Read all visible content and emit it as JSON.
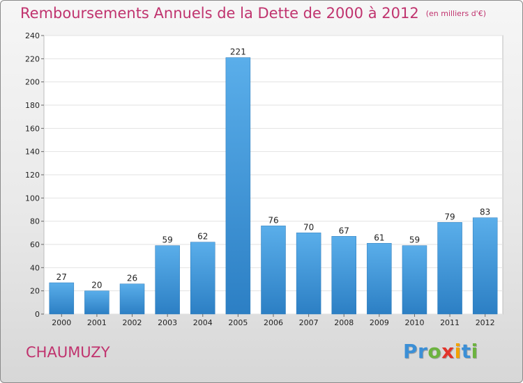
{
  "header": {
    "title": "Remboursements Annuels de la Dette de 2000 à 2012",
    "unit": "(en milliers d'€)"
  },
  "commune": "CHAUMUZY",
  "logo": {
    "letters": [
      {
        "char": "P",
        "color": "#3b8fd6"
      },
      {
        "char": "r",
        "color": "#3b8fd6"
      },
      {
        "char": "o",
        "color": "#6cb33f"
      },
      {
        "char": "x",
        "color": "#e2342b"
      },
      {
        "char": "i",
        "color": "#f2a200"
      },
      {
        "char": "t",
        "color": "#3b8fd6"
      },
      {
        "char": "i",
        "color": "#6cb33f"
      }
    ]
  },
  "chart_data": {
    "type": "bar",
    "categories": [
      "2000",
      "2001",
      "2002",
      "2003",
      "2004",
      "2005",
      "2006",
      "2007",
      "2008",
      "2009",
      "2010",
      "2011",
      "2012"
    ],
    "values": [
      27,
      20,
      26,
      59,
      62,
      221,
      76,
      70,
      67,
      61,
      59,
      79,
      83
    ],
    "title": "Remboursements Annuels de la Dette de 2000 à 2012",
    "ylim": [
      0,
      240
    ],
    "yticks": [
      0,
      20,
      40,
      60,
      80,
      100,
      120,
      140,
      160,
      180,
      200,
      220,
      240
    ],
    "grid": true,
    "bar_color": "#4a9fe0"
  }
}
